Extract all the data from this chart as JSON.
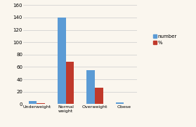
{
  "categories": [
    "Underweight",
    "Normal\nweight",
    "Overweight",
    "Obese"
  ],
  "number_values": [
    5,
    140,
    55,
    3
  ],
  "percent_values": [
    2,
    68,
    27,
    1
  ],
  "number_color": "#5B9BD5",
  "percent_color": "#C0392B",
  "legend_labels": [
    "number",
    "%"
  ],
  "ylim": [
    0,
    160
  ],
  "yticks": [
    0,
    20,
    40,
    60,
    80,
    100,
    120,
    140,
    160
  ],
  "background_color": "#FAF6EE",
  "grid_color": "#CCCCCC",
  "bar_width": 0.28,
  "figsize": [
    2.79,
    1.81
  ],
  "dpi": 100
}
